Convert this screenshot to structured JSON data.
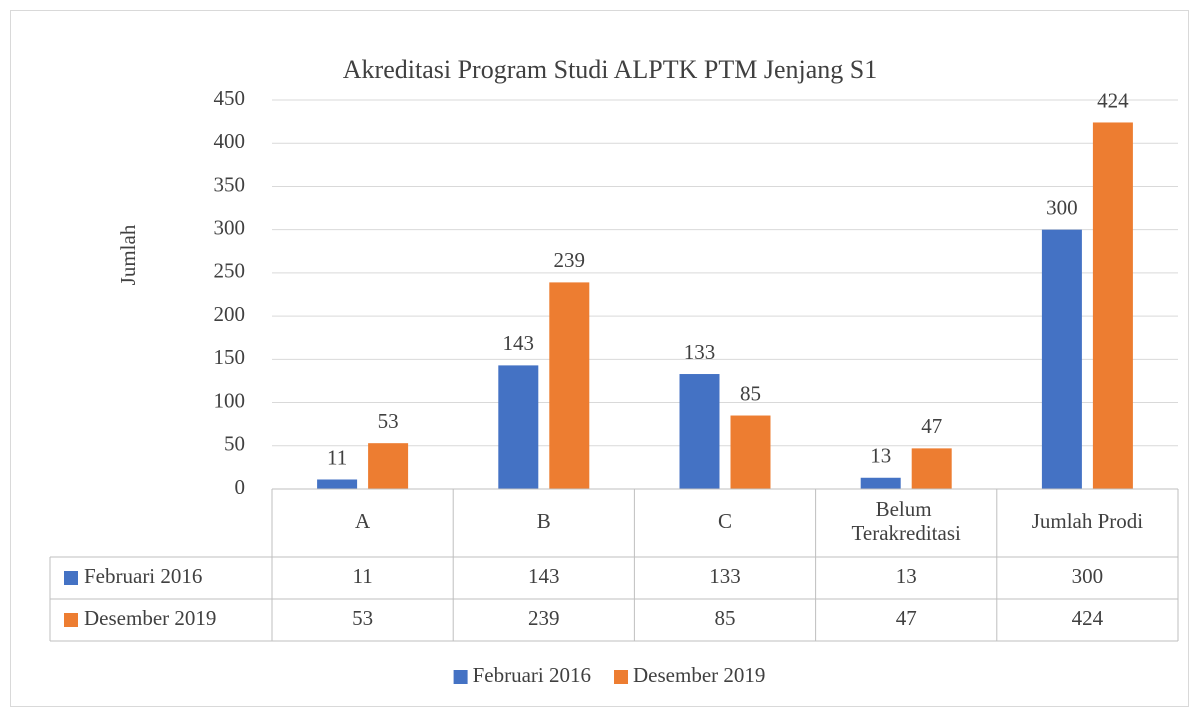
{
  "chart_data": {
    "type": "bar",
    "title": "Akreditasi Program Studi ALPTK PTM Jenjang S1",
    "y_label": "Jumlah",
    "categories": [
      "A",
      "B",
      "C",
      "Belum Terakreditasi",
      "Jumlah Prodi"
    ],
    "series": [
      {
        "name": "Februari 2016",
        "color": "#4472c4",
        "values": [
          11,
          143,
          133,
          13,
          300
        ]
      },
      {
        "name": "Desember 2019",
        "color": "#ed7d31",
        "values": [
          53,
          239,
          85,
          47,
          424
        ]
      }
    ],
    "ylim": [
      0,
      450
    ],
    "yticks": [
      0,
      50,
      100,
      150,
      200,
      250,
      300,
      350,
      400,
      450
    ],
    "grid": true,
    "legend": "bottom",
    "data_table": true
  }
}
